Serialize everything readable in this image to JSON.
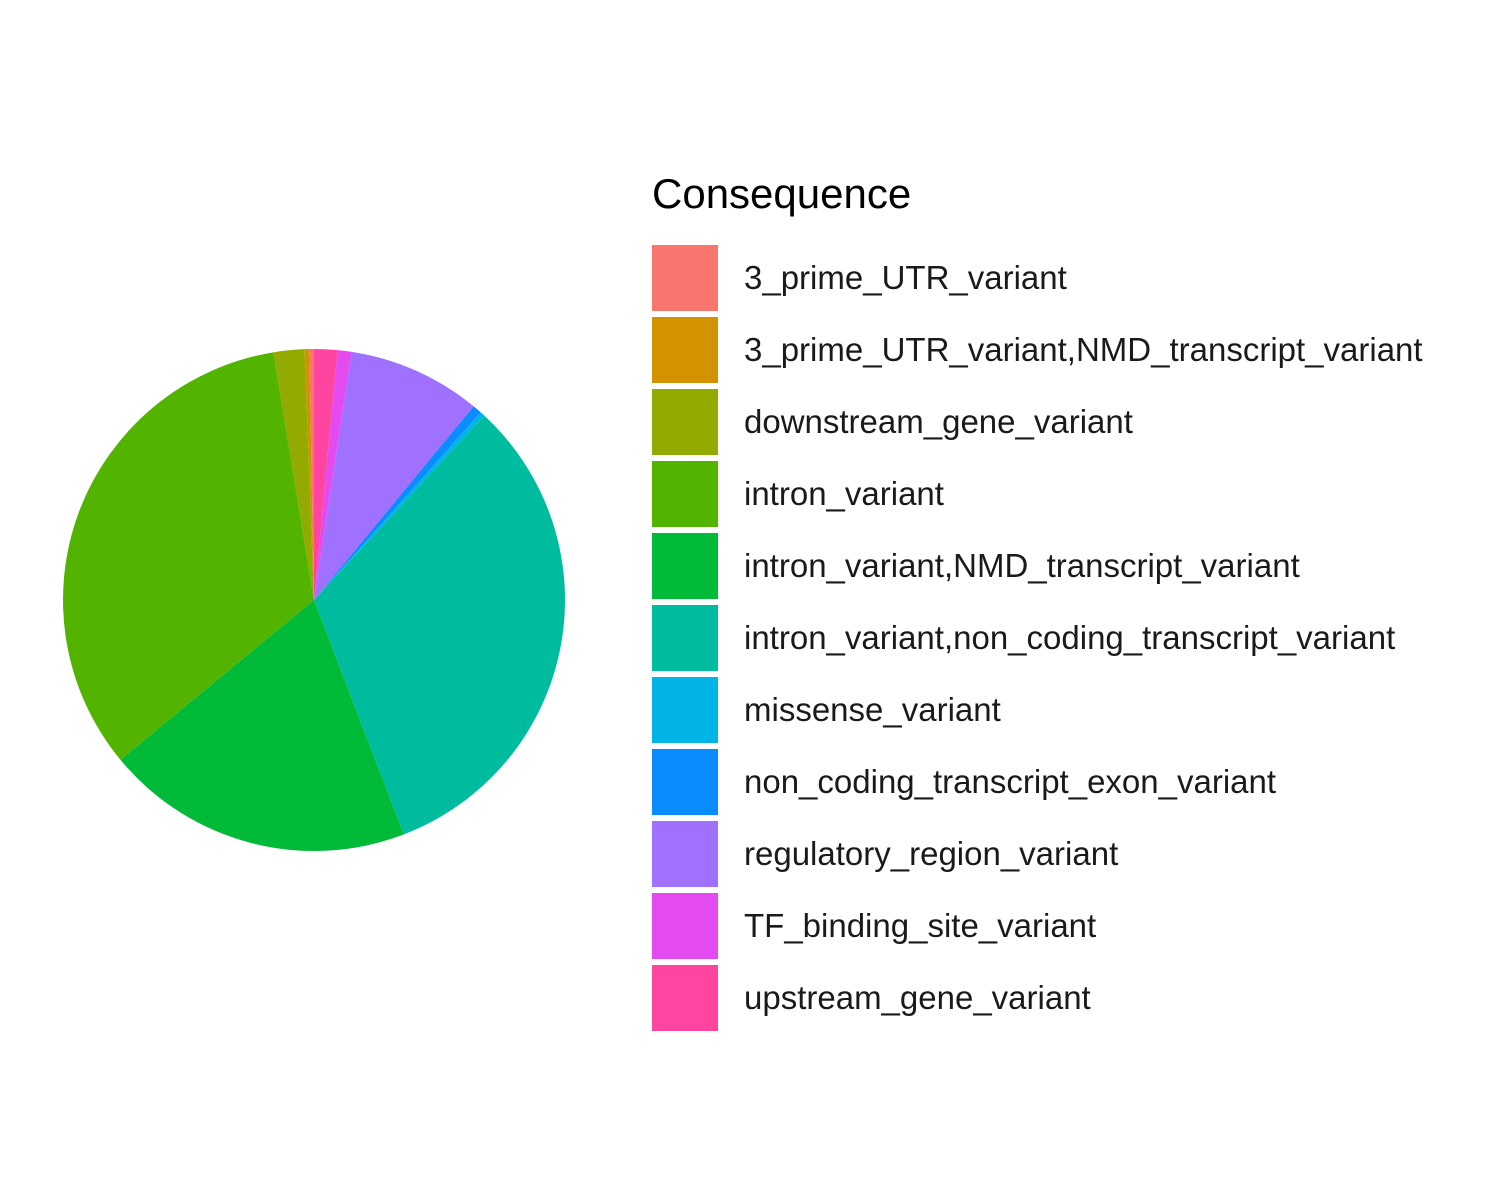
{
  "chart_data": {
    "type": "pie",
    "legend_title": "Consequence",
    "legend_position": "right",
    "categories": [
      "3_prime_UTR_variant",
      "3_prime_UTR_variant,NMD_transcript_variant",
      "downstream_gene_variant",
      "intron_variant",
      "intron_variant,NMD_transcript_variant",
      "intron_variant,non_coding_transcript_variant",
      "missense_variant",
      "non_coding_transcript_exon_variant",
      "regulatory_region_variant",
      "TF_binding_site_variant",
      "upstream_gene_variant"
    ],
    "values": [
      0.3,
      0.3,
      2.0,
      33.5,
      19.9,
      32.4,
      0.3,
      0.6,
      8.6,
      0.9,
      1.5
    ],
    "colors": [
      "#F8766D",
      "#D39200",
      "#93AA00",
      "#53B400",
      "#00BA38",
      "#00BC9F",
      "#00B5E6",
      "#0A8CFF",
      "#A070FF",
      "#E34AEF",
      "#FF45A0"
    ]
  }
}
